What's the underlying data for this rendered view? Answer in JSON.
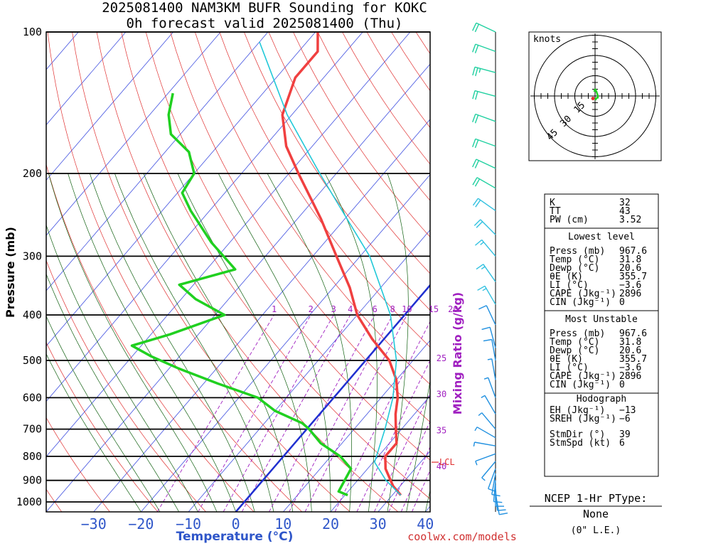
{
  "header": {
    "title_line1": "2025081400 NAM3KM BUFR Sounding for KOKC",
    "title_line2": "0h forecast valid 2025081400 (Thu)"
  },
  "credit": "coolwx.com/models",
  "ptype": {
    "title": "NCEP 1-Hr PType:",
    "value": "None",
    "note": "(0\" L.E.)"
  },
  "hodograph": {
    "units_label": "knots",
    "ring_labels": [
      "15",
      "30",
      "45"
    ],
    "storm_motion_dir_deg": 39,
    "storm_motion_speed_kt": 6
  },
  "indices": {
    "top": [
      {
        "label": "K",
        "value": "32"
      },
      {
        "label": "TT",
        "value": "43"
      },
      {
        "label": "PW (cm)",
        "value": "3.52"
      }
    ],
    "lowest_level": {
      "heading": "Lowest level",
      "rows": [
        {
          "label": "Press (mb)",
          "value": "967.6"
        },
        {
          "label": "Temp  (°C)",
          "value": "31.8"
        },
        {
          "label": "Dewp  (°C)",
          "value": "20.6"
        },
        {
          "label": "θE (K)",
          "value": "355.7"
        },
        {
          "label": "LI  (°C)",
          "value": "−3.6"
        },
        {
          "label": "CAPE (Jkg⁻¹)",
          "value": "2896"
        },
        {
          "label": "CIN  (Jkg⁻¹)",
          "value": "0"
        }
      ]
    },
    "most_unstable": {
      "heading": "Most Unstable",
      "rows": [
        {
          "label": "Press (mb)",
          "value": "967.6"
        },
        {
          "label": "Temp  (°C)",
          "value": "31.8"
        },
        {
          "label": "Dewp  (°C)",
          "value": "20.6"
        },
        {
          "label": "θE (K)",
          "value": "355.7"
        },
        {
          "label": "LI  (°C)",
          "value": "−3.6"
        },
        {
          "label": "CAPE (Jkg⁻¹)",
          "value": "2896"
        },
        {
          "label": "CIN  (Jkg⁻¹)",
          "value": "0"
        }
      ]
    },
    "hodograph_box": {
      "heading": "Hodograph",
      "rows": [
        {
          "label": "EH (Jkg⁻¹)",
          "value": "−13"
        },
        {
          "label": "SREH (Jkg⁻¹)",
          "value": "−6"
        },
        {
          "label": "StmDir (°)",
          "value": "39"
        },
        {
          "label": "StmSpd (kt)",
          "value": "6"
        }
      ]
    }
  },
  "chart_data": {
    "type": "line",
    "title": "2025081400 NAM3KM BUFR Sounding for KOKC",
    "subtitle": "0h forecast valid 2025081400 (Thu)",
    "xlabel": "Temperature (°C)",
    "ylabel": "Pressure (mb)",
    "secondary_label": "Mixing Ratio (g/kg)",
    "x_ticks": [
      "−30",
      "−20",
      "−10",
      "0",
      "10",
      "20",
      "30",
      "40"
    ],
    "x_tick_values": [
      -30,
      -20,
      -10,
      0,
      10,
      20,
      30,
      40
    ],
    "y_ticks": [
      "100",
      "200",
      "300",
      "400",
      "500",
      "600",
      "700",
      "800",
      "900",
      "1000"
    ],
    "y_tick_values": [
      100,
      200,
      300,
      400,
      500,
      600,
      700,
      800,
      900,
      1000
    ],
    "xlim": [
      -40,
      41
    ],
    "ylim": [
      1050,
      100
    ],
    "log_pressure": true,
    "skew_deg_per_decade": 85,
    "mixing_ratio_labels": [
      "1",
      "2",
      "3",
      "4",
      "6",
      "8",
      "10",
      "15",
      "20",
      "25",
      "30",
      "35",
      "40"
    ],
    "lcl_label": "LCL",
    "lcl_pressure": 823,
    "series": [
      {
        "name": "Temperature",
        "color": "#f04040",
        "points": [
          [
            967.6,
            31.8
          ],
          [
            925,
            28.5
          ],
          [
            850,
            23.8
          ],
          [
            800,
            21.5
          ],
          [
            750,
            21.5
          ],
          [
            700,
            18.8
          ],
          [
            650,
            16.0
          ],
          [
            600,
            13.5
          ],
          [
            550,
            10.0
          ],
          [
            500,
            5.0
          ],
          [
            450,
            -2.5
          ],
          [
            400,
            -10.0
          ],
          [
            350,
            -16.5
          ],
          [
            300,
            -25.0
          ],
          [
            250,
            -35.0
          ],
          [
            200,
            -48.0
          ],
          [
            175,
            -55.5
          ],
          [
            150,
            -62.0
          ],
          [
            125,
            -66.0
          ],
          [
            110,
            -66.0
          ],
          [
            100,
            -69.5
          ]
        ]
      },
      {
        "name": "Dewpoint",
        "color": "#20d020",
        "points": [
          [
            967.6,
            20.6
          ],
          [
            950,
            18.0
          ],
          [
            850,
            16.5
          ],
          [
            800,
            12.0
          ],
          [
            750,
            5.5
          ],
          [
            700,
            0.5
          ],
          [
            680,
            -2.0
          ],
          [
            640,
            -10.0
          ],
          [
            600,
            -16.0
          ],
          [
            560,
            -27.0
          ],
          [
            520,
            -38.0
          ],
          [
            490,
            -46.0
          ],
          [
            465,
            -52.0
          ],
          [
            440,
            -46.0
          ],
          [
            400,
            -38.0
          ],
          [
            370,
            -47.0
          ],
          [
            345,
            -53.0
          ],
          [
            320,
            -44.0
          ],
          [
            280,
            -54.0
          ],
          [
            240,
            -64.0
          ],
          [
            220,
            -69.0
          ],
          [
            200,
            -70.0
          ],
          [
            180,
            -75.0
          ],
          [
            165,
            -82.0
          ],
          [
            150,
            -86.0
          ],
          [
            135,
            -89.0
          ]
        ]
      },
      {
        "name": "Parcel",
        "color": "#20c8d8",
        "points": [
          [
            967.6,
            31.8
          ],
          [
            900,
            26.0
          ],
          [
            823,
            20.3
          ],
          [
            700,
            16.5
          ],
          [
            600,
            12.5
          ],
          [
            500,
            6.5
          ],
          [
            400,
            -3.0
          ],
          [
            300,
            -18.0
          ],
          [
            250,
            -29.5
          ],
          [
            200,
            -43.5
          ],
          [
            150,
            -61.0
          ],
          [
            105,
            -80.0
          ]
        ]
      }
    ],
    "freezing_line_color": "#2030d0",
    "wind_barbs": [
      {
        "p": 960,
        "dir": 170,
        "spd": 8
      },
      {
        "p": 940,
        "dir": 175,
        "spd": 10
      },
      {
        "p": 920,
        "dir": 180,
        "spd": 12
      },
      {
        "p": 900,
        "dir": 185,
        "spd": 12
      },
      {
        "p": 870,
        "dir": 190,
        "spd": 10
      },
      {
        "p": 850,
        "dir": 200,
        "spd": 8
      },
      {
        "p": 820,
        "dir": 220,
        "spd": 6
      },
      {
        "p": 790,
        "dir": 250,
        "spd": 5
      },
      {
        "p": 760,
        "dir": 280,
        "spd": 5
      },
      {
        "p": 730,
        "dir": 300,
        "spd": 6
      },
      {
        "p": 700,
        "dir": 320,
        "spd": 5
      },
      {
        "p": 650,
        "dir": 330,
        "spd": 5
      },
      {
        "p": 600,
        "dir": 340,
        "spd": 5
      },
      {
        "p": 550,
        "dir": 350,
        "spd": 5
      },
      {
        "p": 500,
        "dir": 350,
        "spd": 8
      },
      {
        "p": 470,
        "dir": 345,
        "spd": 10
      },
      {
        "p": 420,
        "dir": 335,
        "spd": 12
      },
      {
        "p": 380,
        "dir": 330,
        "spd": 14
      },
      {
        "p": 340,
        "dir": 325,
        "spd": 14
      },
      {
        "p": 300,
        "dir": 320,
        "spd": 16
      },
      {
        "p": 270,
        "dir": 315,
        "spd": 18
      },
      {
        "p": 240,
        "dir": 305,
        "spd": 18
      },
      {
        "p": 215,
        "dir": 300,
        "spd": 20
      },
      {
        "p": 195,
        "dir": 295,
        "spd": 20
      },
      {
        "p": 175,
        "dir": 290,
        "spd": 22
      },
      {
        "p": 155,
        "dir": 290,
        "spd": 20
      },
      {
        "p": 137,
        "dir": 285,
        "spd": 22
      },
      {
        "p": 122,
        "dir": 285,
        "spd": 24
      },
      {
        "p": 110,
        "dir": 290,
        "spd": 20
      },
      {
        "p": 100,
        "dir": 295,
        "spd": 18
      }
    ]
  }
}
